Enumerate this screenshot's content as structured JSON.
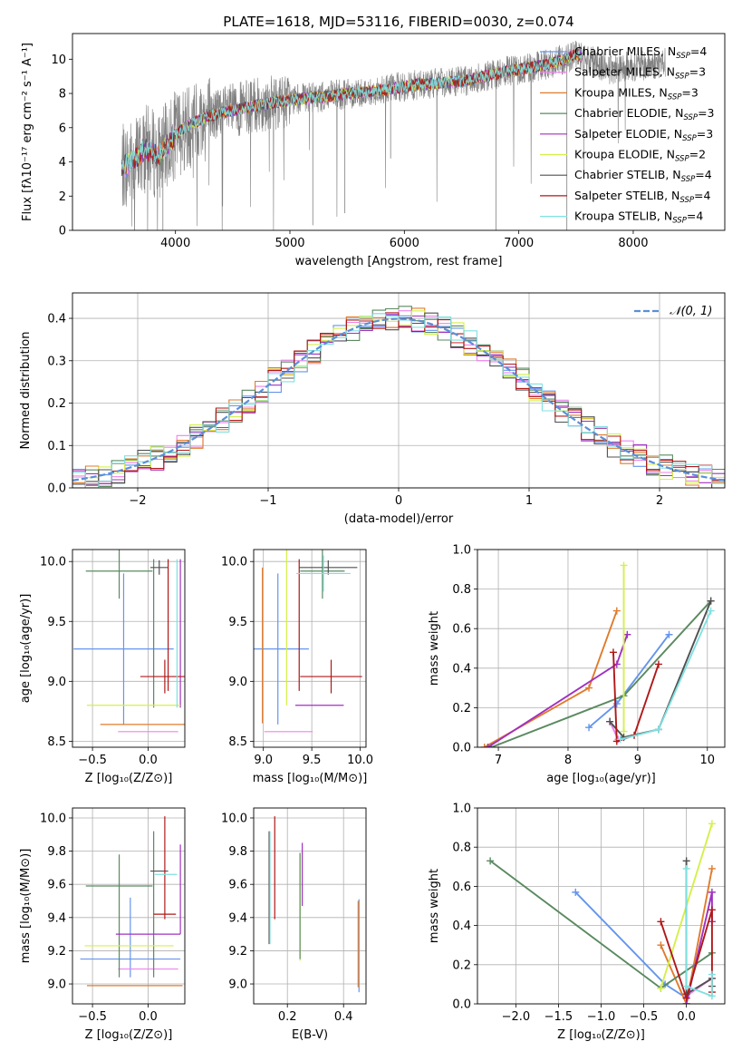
{
  "colors": {
    "Chabrier MILES": "#6495ed",
    "Salpeter MILES": "#ee82ee",
    "Kroupa MILES": "#e07b2c",
    "Chabrier ELODIE": "#5a8a60",
    "Salpeter ELODIE": "#a030c0",
    "Kroupa ELODIE": "#d4f04a",
    "Chabrier STELIB": "#505050",
    "Salpeter STELIB": "#b01818",
    "Kroupa STELIB": "#80e0e0",
    "data": "#808080",
    "gauss": "#5b8fd8"
  },
  "chart_data": [
    {
      "id": "spectrum",
      "type": "line",
      "title": "PLATE=1618, MJD=53116, FIBERID=0030, z=0.074",
      "xlabel": "wavelength [Angstrom, rest frame]",
      "ylabel": "Flux [fλ10⁻¹⁷ erg cm⁻² s⁻¹ A⁻¹]",
      "xlim": [
        3100,
        8800
      ],
      "ylim": [
        0,
        11.5
      ],
      "xticks": [
        "4000",
        "5000",
        "6000",
        "7000",
        "8000"
      ],
      "yticks": [
        "0",
        "2",
        "4",
        "6",
        "8",
        "10"
      ],
      "legend_position": "right",
      "legend": [
        {
          "prefix": "Chabrier MILES, N",
          "value": "4"
        },
        {
          "prefix": "Salpeter MILES, N",
          "value": "3"
        },
        {
          "prefix": "Kroupa MILES, N",
          "value": "3"
        },
        {
          "prefix": "Chabrier ELODIE, N",
          "value": "3"
        },
        {
          "prefix": "Salpeter ELODIE, N",
          "value": "3"
        },
        {
          "prefix": "Kroupa ELODIE, N",
          "value": "2"
        },
        {
          "prefix": "Chabrier STELIB, N",
          "value": "4"
        },
        {
          "prefix": "Salpeter STELIB, N",
          "value": "4"
        },
        {
          "prefix": "Kroupa STELIB, N",
          "value": "4"
        }
      ],
      "legend_sub": "SSP",
      "continuum": [
        [
          3530,
          3.6
        ],
        [
          3650,
          4.2
        ],
        [
          3750,
          4.8
        ],
        [
          3850,
          4.3
        ],
        [
          4000,
          5.6
        ],
        [
          4100,
          6.1
        ],
        [
          4300,
          6.7
        ],
        [
          4500,
          7.0
        ],
        [
          4700,
          7.3
        ],
        [
          4900,
          7.5
        ],
        [
          5100,
          7.7
        ],
        [
          5300,
          7.8
        ],
        [
          5500,
          8.0
        ],
        [
          5700,
          8.1
        ],
        [
          5900,
          8.3
        ],
        [
          6100,
          8.5
        ],
        [
          6300,
          8.6
        ],
        [
          6500,
          8.7
        ],
        [
          6700,
          9.0
        ],
        [
          6900,
          9.3
        ],
        [
          7100,
          9.5
        ],
        [
          7300,
          9.8
        ],
        [
          7400,
          10.0
        ],
        [
          7500,
          10.3
        ],
        [
          7600,
          10.0
        ],
        [
          7800,
          9.4
        ],
        [
          7950,
          9.6
        ],
        [
          8100,
          9.6
        ],
        [
          8280,
          9.8
        ]
      ],
      "model_range": [
        3530,
        7550
      ]
    },
    {
      "id": "residuals",
      "type": "histogram",
      "xlabel": "(data-model)/error",
      "ylabel": "Normed distribution",
      "xlim": [
        -2.5,
        2.5
      ],
      "ylim": [
        0,
        0.46
      ],
      "xticks": [
        "−2",
        "−1",
        "0",
        "1",
        "2"
      ],
      "yticks": [
        "0.0",
        "0.1",
        "0.2",
        "0.3",
        "0.4"
      ],
      "legend": "𝒩(0, 1)",
      "legend_position": "upper right",
      "grid": true,
      "bin_width": 0.1
    },
    {
      "id": "age_Z",
      "type": "errorbar",
      "xlabel": "Z [log₁₀(Z/Z⊙)]",
      "ylabel": "age  [log₁₀(age/yr)]",
      "xlim": [
        -0.68,
        0.33
      ],
      "ylim": [
        8.45,
        10.1
      ],
      "xticks": [
        "−0.5",
        "0.0"
      ],
      "yticks": [
        "8.5",
        "9.0",
        "9.5",
        "10.0"
      ],
      "points": [
        {
          "s": "Chabrier MILES",
          "x": -0.22,
          "xe": 0.45,
          "y": 9.27,
          "ye": 0.63
        },
        {
          "s": "Salpeter MILES",
          "x": 0.0,
          "xe": 0.27,
          "y": 8.58,
          "ye": 0
        },
        {
          "s": "Kroupa MILES",
          "x": 0.0,
          "xe": 0.43,
          "y": 8.64,
          "ye": 0
        },
        {
          "s": "Chabrier ELODIE",
          "x": -0.26,
          "xe": 0.3,
          "y": 9.92,
          "ye": 0.23
        },
        {
          "s": "Chabrier ELODIE",
          "x": 0.05,
          "xe": 0,
          "y": 9.4,
          "ye": 0.62
        },
        {
          "s": "Salpeter ELODIE",
          "x": 0.29,
          "xe": 0,
          "y": 9.4,
          "ye": 0.62
        },
        {
          "s": "Kroupa ELODIE",
          "x": -0.13,
          "xe": 0.42,
          "y": 8.8,
          "ye": 0
        },
        {
          "s": "Chabrier STELIB",
          "x": 0.1,
          "xe": 0.08,
          "y": 9.95,
          "ye": 0.06
        },
        {
          "s": "Salpeter STELIB",
          "x": 0.15,
          "xe": 0.22,
          "y": 9.04,
          "ye": 0.14
        },
        {
          "s": "Salpeter STELIB",
          "x": 0.18,
          "xe": 0,
          "y": 9.47,
          "ye": 0.55
        },
        {
          "s": "Kroupa STELIB",
          "x": 0.26,
          "xe": 0,
          "y": 9.4,
          "ye": 0.62
        }
      ]
    },
    {
      "id": "age_mass",
      "type": "errorbar",
      "xlabel": "mass [log₁₀(M/M⊙)]",
      "ylabel": "",
      "xlim": [
        8.9,
        10.06
      ],
      "ylim": [
        8.45,
        10.1
      ],
      "xticks": [
        "9.0",
        "9.5",
        "10.0"
      ],
      "yticks": [
        "8.5",
        "9.0",
        "9.5",
        "10.0"
      ],
      "points": [
        {
          "s": "Chabrier MILES",
          "x": 9.15,
          "xe": 0.32,
          "y": 9.27,
          "ye": 0.63
        },
        {
          "s": "Salpeter MILES",
          "x": 9.26,
          "xe": 0.25,
          "y": 8.58,
          "ye": 0
        },
        {
          "s": "Kroupa MILES",
          "x": 8.99,
          "xe": 0,
          "y": 9.3,
          "ye": 0.65
        },
        {
          "s": "Chabrier ELODIE",
          "x": 9.61,
          "xe": 0.23,
          "y": 9.92,
          "ye": 0.23
        },
        {
          "s": "Salpeter ELODIE",
          "x": 9.58,
          "xe": 0.25,
          "y": 8.8,
          "ye": 0
        },
        {
          "s": "Kroupa ELODIE",
          "x": 9.24,
          "xe": 0,
          "y": 9.45,
          "ye": 0.65
        },
        {
          "s": "Chabrier STELIB",
          "x": 9.67,
          "xe": 0.3,
          "y": 9.95,
          "ye": 0.06
        },
        {
          "s": "Salpeter STELIB",
          "x": 9.7,
          "xe": 0.32,
          "y": 9.04,
          "ye": 0.14
        },
        {
          "s": "Salpeter STELIB",
          "x": 9.37,
          "xe": 0,
          "y": 9.47,
          "ye": 0.55
        },
        {
          "s": "Kroupa STELIB",
          "x": 9.62,
          "xe": 0.28,
          "y": 9.9,
          "ye": 0.15
        }
      ]
    },
    {
      "id": "weight_age",
      "type": "line",
      "xlabel": "age  [log₁₀(age/yr)]",
      "ylabel": "mass weight",
      "xlim": [
        6.7,
        10.25
      ],
      "ylim": [
        0,
        1.0
      ],
      "xticks": [
        "7",
        "8",
        "9",
        "10"
      ],
      "yticks": [
        "0.0",
        "0.2",
        "0.4",
        "0.6",
        "0.8",
        "1.0"
      ],
      "series": [
        {
          "s": "Chabrier MILES",
          "x": [
            8.3,
            8.7,
            9.45
          ],
          "y": [
            0.1,
            0.22,
            0.57
          ]
        },
        {
          "s": "Salpeter MILES",
          "x": [
            8.6,
            8.72
          ],
          "y": [
            0.13,
            0.04
          ]
        },
        {
          "s": "Kroupa MILES",
          "x": [
            6.8,
            8.3,
            8.7
          ],
          "y": [
            0.0,
            0.3,
            0.69
          ]
        },
        {
          "s": "Chabrier ELODIE",
          "x": [
            6.9,
            8.8,
            10.05
          ],
          "y": [
            0.0,
            0.26,
            0.74
          ]
        },
        {
          "s": "Salpeter ELODIE",
          "x": [
            6.85,
            8.7,
            8.85
          ],
          "y": [
            0.0,
            0.42,
            0.57
          ]
        },
        {
          "s": "Kroupa ELODIE",
          "x": [
            8.8,
            8.8
          ],
          "y": [
            0.08,
            0.92
          ]
        },
        {
          "s": "Chabrier STELIB",
          "x": [
            8.6,
            8.8,
            9.3,
            10.05
          ],
          "y": [
            0.13,
            0.05,
            0.09,
            0.74
          ]
        },
        {
          "s": "Salpeter STELIB",
          "x": [
            8.65,
            8.7,
            8.95,
            9.3
          ],
          "y": [
            0.48,
            0.03,
            0.06,
            0.42
          ]
        },
        {
          "s": "Kroupa STELIB",
          "x": [
            8.75,
            9.3,
            10.05
          ],
          "y": [
            0.04,
            0.09,
            0.69
          ]
        }
      ]
    },
    {
      "id": "mass_Z",
      "type": "errorbar",
      "xlabel": "Z [log₁₀(Z/Z⊙)]",
      "ylabel": "mass [log₁₀(M/M⊙)]",
      "xlim": [
        -0.68,
        0.33
      ],
      "ylim": [
        8.88,
        10.06
      ],
      "xticks": [
        "−0.5",
        "0.0"
      ],
      "yticks": [
        "9.0",
        "9.2",
        "9.4",
        "9.6",
        "9.8",
        "10.0"
      ],
      "points": [
        {
          "s": "Chabrier MILES",
          "x": -0.16,
          "xe": 0.45,
          "y": 9.15,
          "ye": 0
        },
        {
          "s": "Chabrier MILES",
          "x": -0.16,
          "xe": 0,
          "y": 9.28,
          "ye": 0.24
        },
        {
          "s": "Salpeter MILES",
          "x": 0.0,
          "xe": 0.27,
          "y": 9.09,
          "ye": 0
        },
        {
          "s": "Kroupa MILES",
          "x": -0.12,
          "xe": 0.43,
          "y": 8.99,
          "ye": 0
        },
        {
          "s": "Chabrier ELODIE",
          "x": -0.26,
          "xe": 0.3,
          "y": 9.59,
          "ye": 0
        },
        {
          "s": "Chabrier ELODIE",
          "x": -0.26,
          "xe": 0,
          "y": 9.41,
          "ye": 0.37
        },
        {
          "s": "Chabrier ELODIE",
          "x": 0.05,
          "xe": 0,
          "y": 9.48,
          "ye": 0.44
        },
        {
          "s": "Salpeter ELODIE",
          "x": 0.0,
          "xe": 0.29,
          "y": 9.3,
          "ye": 0
        },
        {
          "s": "Salpeter ELODIE",
          "x": 0.29,
          "xe": 0,
          "y": 9.57,
          "ye": 0.27
        },
        {
          "s": "Kroupa ELODIE",
          "x": -0.17,
          "xe": 0.4,
          "y": 9.23,
          "ye": 0
        },
        {
          "s": "Chabrier STELIB",
          "x": 0.1,
          "xe": 0.08,
          "y": 9.68,
          "ye": 0
        },
        {
          "s": "Salpeter STELIB",
          "x": 0.15,
          "xe": 0.1,
          "y": 9.42,
          "ye": 0
        },
        {
          "s": "Salpeter STELIB",
          "x": 0.15,
          "xe": 0,
          "y": 9.7,
          "ye": 0.31
        },
        {
          "s": "Kroupa STELIB",
          "x": 0.16,
          "xe": 0.1,
          "y": 9.66,
          "ye": 0
        }
      ]
    },
    {
      "id": "mass_EBV",
      "type": "errorbar",
      "xlabel": "E(B-V)",
      "ylabel": "",
      "xlim": [
        0.08,
        0.48
      ],
      "ylim": [
        8.88,
        10.06
      ],
      "xticks": [
        "0.2",
        "0.4"
      ],
      "yticks": [
        "9.0",
        "9.2",
        "9.4",
        "9.6",
        "9.8",
        "10.0"
      ],
      "points": [
        {
          "s": "Chabrier STELIB",
          "x": 0.135,
          "xe": 0,
          "y": 9.58,
          "ye": 0.34
        },
        {
          "s": "Kroupa STELIB",
          "x": 0.138,
          "xe": 0,
          "y": 9.58,
          "ye": 0.34
        },
        {
          "s": "Salpeter STELIB",
          "x": 0.155,
          "xe": 0,
          "y": 9.7,
          "ye": 0.31
        },
        {
          "s": "Kroupa ELODIE",
          "x": 0.245,
          "xe": 0,
          "y": 9.46,
          "ye": 0.32
        },
        {
          "s": "Chabrier ELODIE",
          "x": 0.245,
          "xe": 0,
          "y": 9.47,
          "ye": 0.32
        },
        {
          "s": "Salpeter ELODIE",
          "x": 0.253,
          "xe": 0,
          "y": 9.66,
          "ye": 0.19
        },
        {
          "s": "Chabrier MILES",
          "x": 0.455,
          "xe": 0,
          "y": 9.23,
          "ye": 0.28
        },
        {
          "s": "Kroupa MILES",
          "x": 0.452,
          "xe": 0,
          "y": 9.24,
          "ye": 0.26
        }
      ]
    },
    {
      "id": "weight_Z",
      "type": "line",
      "xlabel": "Z [log₁₀(Z/Z⊙)]",
      "ylabel": "mass weight",
      "xlim": [
        -2.45,
        0.45
      ],
      "ylim": [
        0,
        1.0
      ],
      "xticks": [
        "−2.0",
        "−1.5",
        "−1.0",
        "−0.5",
        "0.0"
      ],
      "yticks": [
        "0.0",
        "0.2",
        "0.4",
        "0.6",
        "0.8",
        "1.0"
      ],
      "series": [
        {
          "s": "Chabrier MILES",
          "x": [
            -1.3,
            -0.25,
            0.0
          ],
          "y": [
            0.57,
            0.1,
            0.03
          ]
        },
        {
          "s": "Salpeter MILES",
          "x": [
            0.0,
            0.3
          ],
          "y": [
            0.04,
            0.13
          ]
        },
        {
          "s": "Kroupa MILES",
          "x": [
            -0.3,
            0.0,
            0.3
          ],
          "y": [
            0.3,
            0.0,
            0.69
          ]
        },
        {
          "s": "Chabrier ELODIE",
          "x": [
            -2.3,
            -0.3,
            0.3
          ],
          "y": [
            0.73,
            0.08,
            0.26
          ]
        },
        {
          "s": "Salpeter ELODIE",
          "x": [
            0.0,
            0.3,
            0.3
          ],
          "y": [
            0.0,
            0.57,
            0.42
          ]
        },
        {
          "s": "Kroupa ELODIE",
          "x": [
            -0.3,
            0.3
          ],
          "y": [
            0.08,
            0.92
          ]
        },
        {
          "s": "Chabrier STELIB",
          "x": [
            0.0,
            0.0,
            0.3,
            0.3
          ],
          "y": [
            0.73,
            0.05,
            0.13,
            0.09
          ]
        },
        {
          "s": "Salpeter STELIB",
          "x": [
            -0.3,
            0.0,
            0.3,
            0.3
          ],
          "y": [
            0.42,
            0.03,
            0.48,
            0.06
          ]
        },
        {
          "s": "Kroupa STELIB",
          "x": [
            0.0,
            0.0,
            0.3,
            0.3
          ],
          "y": [
            0.69,
            0.09,
            0.04,
            0.15
          ]
        }
      ]
    }
  ]
}
